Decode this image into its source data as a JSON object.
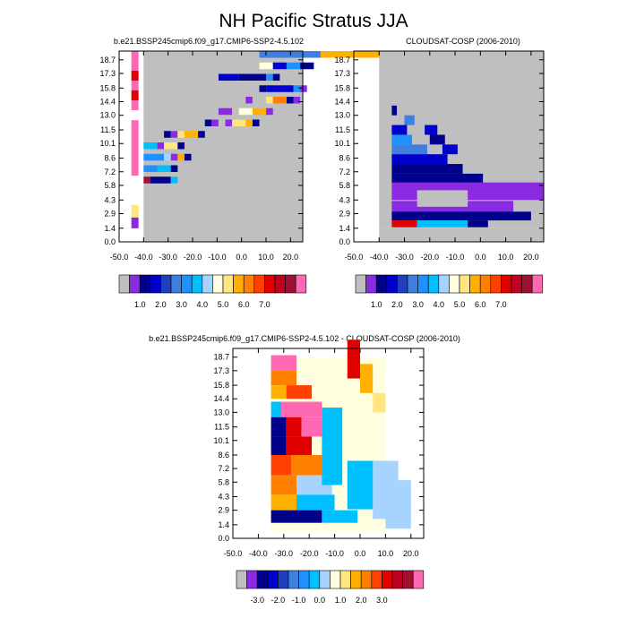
{
  "figure_title": "NH Pacific Stratus JJA",
  "chart_data": [
    {
      "type": "heatmap",
      "id": "model",
      "title": "b.e21.BSSP245cmip6.f09_g17.CMIP6-SSP2-4.5.102",
      "x_ticks": [
        "-50.0",
        "-40.0",
        "-30.0",
        "-20.0",
        "-10.0",
        "0.0",
        "10.0",
        "20.0"
      ],
      "x_values": [
        -50,
        -40,
        -30,
        -20,
        -10,
        0,
        10,
        20
      ],
      "xlim": [
        -50,
        25
      ],
      "y_ticks": [
        "0.0",
        "1.4",
        "2.9",
        "4.3",
        "5.8",
        "7.2",
        "8.6",
        "10.1",
        "11.5",
        "13.0",
        "14.4",
        "15.8",
        "17.3",
        "18.7"
      ],
      "ylim": [
        0,
        19.6
      ],
      "colorbar_labels": [
        "1.0",
        "2.0",
        "3.0",
        "4.0",
        "5.0",
        "6.0",
        "7.0"
      ],
      "colorbar_colors": [
        "#bfbfbf",
        "#8a2be2",
        "#00008b",
        "#0000cd",
        "#1e3fbf",
        "#3f7fe0",
        "#1e90ff",
        "#00bfff",
        "#a6d4ff",
        "#ffffe0",
        "#ffe680",
        "#ffb000",
        "#ff8000",
        "#ff4000",
        "#e00000",
        "#c00020",
        "#a01030",
        "#ff69b4"
      ],
      "grid_note": "cells listed by level (top to bottom) as runs of colour indices",
      "rows": [
        {
          "level": 18.7,
          "runs": [
            [
              0,
              17
            ],
            [
              5,
              9
            ],
            [
              11,
              17
            ]
          ]
        },
        {
          "level": 17.3,
          "runs": [
            [
              0,
              17
            ],
            [
              9,
              2
            ],
            [
              3,
              2
            ],
            [
              6,
              2
            ],
            [
              2,
              2
            ]
          ]
        },
        {
          "level": 15.8,
          "runs": [
            [
              0,
              11
            ],
            [
              3,
              3
            ],
            [
              2,
              4
            ],
            [
              6,
              1
            ],
            [
              2,
              1
            ]
          ]
        },
        {
          "level": 14.4,
          "runs": [
            [
              0,
              17
            ],
            [
              2,
              1
            ],
            [
              3,
              4
            ],
            [
              6,
              1
            ],
            [
              1,
              1
            ]
          ]
        },
        {
          "level": 13.0,
          "runs": [
            [
              0,
              15
            ],
            [
              1,
              1
            ],
            [
              0,
              2
            ],
            [
              10,
              1
            ],
            [
              12,
              2
            ],
            [
              2,
              1
            ],
            [
              1,
              1
            ]
          ]
        },
        {
          "level": 11.5,
          "runs": [
            [
              0,
              11
            ],
            [
              1,
              2
            ],
            [
              0,
              1
            ],
            [
              9,
              2
            ],
            [
              11,
              2
            ],
            [
              1,
              1
            ]
          ]
        },
        {
          "level": 10.1,
          "runs": [
            [
              0,
              9
            ],
            [
              2,
              1
            ],
            [
              1,
              1
            ],
            [
              0,
              1
            ],
            [
              1,
              1
            ],
            [
              10,
              2
            ],
            [
              11,
              1
            ],
            [
              2,
              1
            ]
          ]
        },
        {
          "level": 8.6,
          "runs": [
            [
              0,
              3
            ],
            [
              2,
              1
            ],
            [
              1,
              1
            ],
            [
              10,
              1
            ],
            [
              11,
              2
            ],
            [
              2,
              1
            ]
          ]
        },
        {
          "level": 7.2,
          "runs": [
            [
              7,
              2
            ],
            [
              1,
              1
            ],
            [
              10,
              2
            ],
            [
              2,
              1
            ]
          ]
        },
        {
          "level": 5.8,
          "runs": [
            [
              6,
              3
            ],
            [
              8,
              1
            ],
            [
              1,
              1
            ],
            [
              11,
              1
            ],
            [
              2,
              1
            ]
          ]
        },
        {
          "level": 4.3,
          "runs": [
            [
              6,
              2
            ],
            [
              7,
              2
            ],
            [
              2,
              1
            ]
          ]
        },
        {
          "level": 2.9,
          "runs": [
            [
              16,
              1
            ],
            [
              2,
              3
            ],
            [
              7,
              1
            ]
          ]
        }
      ]
    },
    {
      "type": "heatmap",
      "id": "obs",
      "title": "CLOUDSAT-COSP (2006-2010)",
      "x_ticks": [
        "-50.0",
        "-40.0",
        "-30.0",
        "-20.0",
        "-10.0",
        "0.0",
        "10.0",
        "20.0"
      ],
      "x_values": [
        -50,
        -40,
        -30,
        -20,
        -10,
        0,
        10,
        20
      ],
      "xlim": [
        -50,
        25
      ],
      "y_ticks": [
        "0.0",
        "1.4",
        "2.9",
        "4.3",
        "5.8",
        "7.2",
        "8.6",
        "10.1",
        "11.5",
        "13.0",
        "14.4",
        "15.8",
        "17.3",
        "18.7"
      ],
      "ylim": [
        0,
        19.6
      ],
      "colorbar_labels": [
        "1.0",
        "2.0",
        "3.0",
        "4.0",
        "5.0",
        "6.0",
        "7.0"
      ],
      "colorbar_colors": [
        "#bfbfbf",
        "#8a2be2",
        "#00008b",
        "#0000cd",
        "#1e3fbf",
        "#3f7fe0",
        "#1e90ff",
        "#00bfff",
        "#a6d4ff",
        "#ffffe0",
        "#ffe680",
        "#ffb000",
        "#ff8000",
        "#ff4000",
        "#e00000",
        "#c00020",
        "#a01030",
        "#ff69b4"
      ]
    },
    {
      "type": "heatmap",
      "id": "diff",
      "title": "b.e21.BSSP245cmip6.f09_g17.CMIP6-SSP2-4.5.102 - CLOUDSAT-COSP (2006-2010)",
      "x_ticks": [
        "-50.0",
        "-40.0",
        "-30.0",
        "-20.0",
        "-10.0",
        "0.0",
        "10.0",
        "20.0"
      ],
      "x_values": [
        -50,
        -40,
        -30,
        -20,
        -10,
        0,
        10,
        20
      ],
      "xlim": [
        -50,
        25
      ],
      "y_ticks": [
        "0.0",
        "1.4",
        "2.9",
        "4.3",
        "5.8",
        "7.2",
        "8.6",
        "10.1",
        "11.5",
        "13.0",
        "14.4",
        "15.8",
        "17.3",
        "18.7"
      ],
      "ylim": [
        0,
        19.6
      ],
      "colorbar_labels": [
        "-3.0",
        "-2.0",
        "-1.0",
        "0.0",
        "1.0",
        "2.0",
        "3.0"
      ],
      "colorbar_colors": [
        "#bfbfbf",
        "#8a2be2",
        "#00008b",
        "#0000cd",
        "#1e3fbf",
        "#3f7fe0",
        "#1e90ff",
        "#00bfff",
        "#a6d4ff",
        "#ffffe0",
        "#ffe680",
        "#ffb000",
        "#ff8000",
        "#ff4000",
        "#e00000",
        "#c00020",
        "#a01030",
        "#ff69b4"
      ]
    }
  ]
}
